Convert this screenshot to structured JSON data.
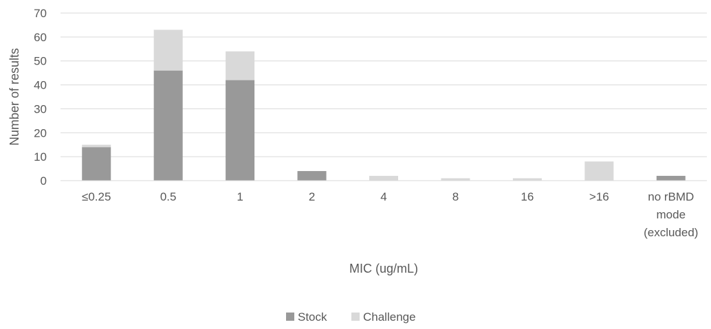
{
  "chart_data": {
    "type": "bar",
    "stacked": true,
    "categories": [
      [
        "≤0.25"
      ],
      [
        "0.5"
      ],
      [
        "1"
      ],
      [
        "2"
      ],
      [
        "4"
      ],
      [
        "8"
      ],
      [
        "16"
      ],
      [
        ">16"
      ],
      [
        "no rBMD",
        "mode",
        "(excluded)"
      ]
    ],
    "series": [
      {
        "name": "Stock",
        "color": "#999999",
        "values": [
          14,
          46,
          42,
          4,
          0,
          0,
          0,
          0,
          2
        ]
      },
      {
        "name": "Challenge",
        "color": "#d9d9d9",
        "values": [
          1,
          17,
          12,
          0,
          2,
          1,
          1,
          8,
          0
        ]
      }
    ],
    "title": "",
    "xlabel": "MIC (ug/mL)",
    "ylabel": "Number of results",
    "ylim": [
      0,
      70
    ],
    "yticks": [
      0,
      10,
      20,
      30,
      40,
      50,
      60,
      70
    ],
    "grid": true,
    "legend_position": "bottom"
  }
}
